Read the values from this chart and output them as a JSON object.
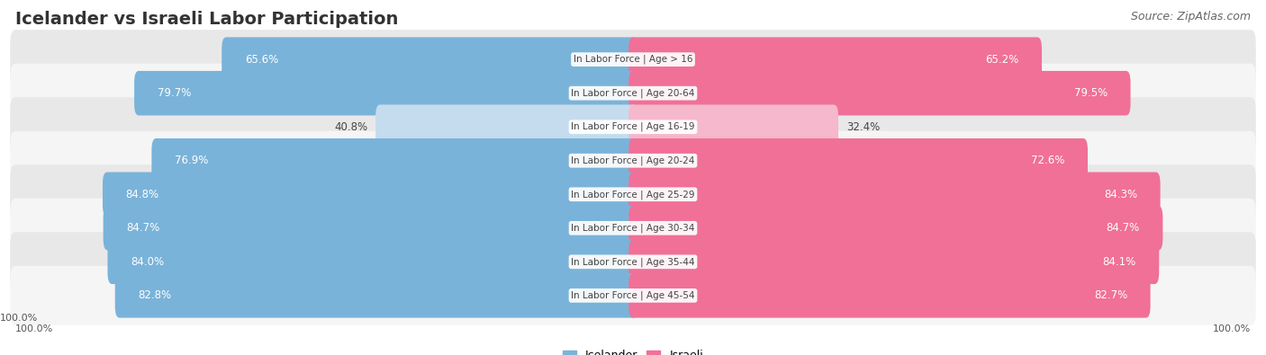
{
  "title": "Icelander vs Israeli Labor Participation",
  "source": "Source: ZipAtlas.com",
  "categories": [
    "In Labor Force | Age > 16",
    "In Labor Force | Age 20-64",
    "In Labor Force | Age 16-19",
    "In Labor Force | Age 20-24",
    "In Labor Force | Age 25-29",
    "In Labor Force | Age 30-34",
    "In Labor Force | Age 35-44",
    "In Labor Force | Age 45-54"
  ],
  "icelander_values": [
    65.6,
    79.7,
    40.8,
    76.9,
    84.8,
    84.7,
    84.0,
    82.8
  ],
  "israeli_values": [
    65.2,
    79.5,
    32.4,
    72.6,
    84.3,
    84.7,
    84.1,
    82.7
  ],
  "icelander_color": "#7ab3d9",
  "icelander_color_light": "#c5dcee",
  "israeli_color": "#f07098",
  "israeli_color_light": "#f5b8cc",
  "row_bg_colors": [
    "#e8e8e8",
    "#f5f5f5"
  ],
  "label_color_dark": "#444444",
  "max_value": 100.0,
  "title_fontsize": 14,
  "source_fontsize": 9,
  "bar_label_fontsize": 8.5,
  "category_fontsize": 7.5,
  "legend_fontsize": 9,
  "axis_fontsize": 8
}
